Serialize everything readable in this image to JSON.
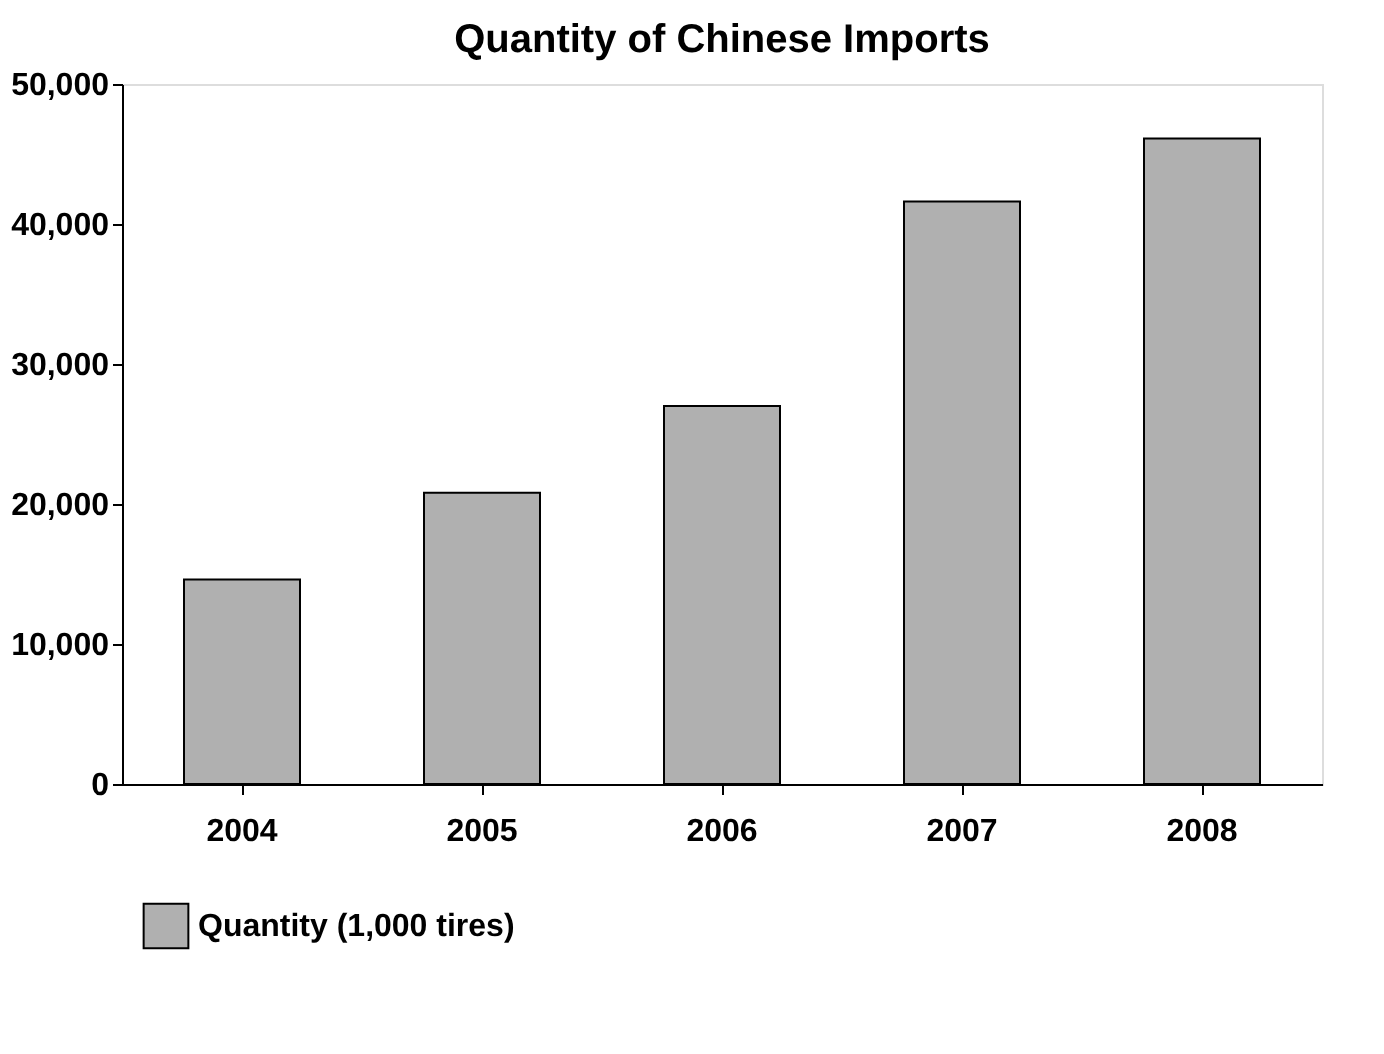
{
  "chart_data": {
    "type": "bar",
    "title": "Quantity of Chinese Imports",
    "categories": [
      "2004",
      "2005",
      "2006",
      "2007",
      "2008"
    ],
    "series": [
      {
        "name": "Quantity (1,000 tires)",
        "color": "#b0b0b0",
        "values": [
          14600,
          20800,
          27000,
          41600,
          46100
        ]
      }
    ],
    "ylim": [
      0,
      50000
    ],
    "yticks": [
      0,
      {
        "value": 10000,
        "label": "10,000"
      },
      {
        "value": 20000,
        "label": "20,000"
      },
      {
        "value": 30000,
        "label": "30,000"
      },
      {
        "value": 40000,
        "label": "40,000"
      },
      {
        "value": 50000,
        "label": "50,000"
      }
    ],
    "grid": false,
    "legend": "bottom"
  }
}
